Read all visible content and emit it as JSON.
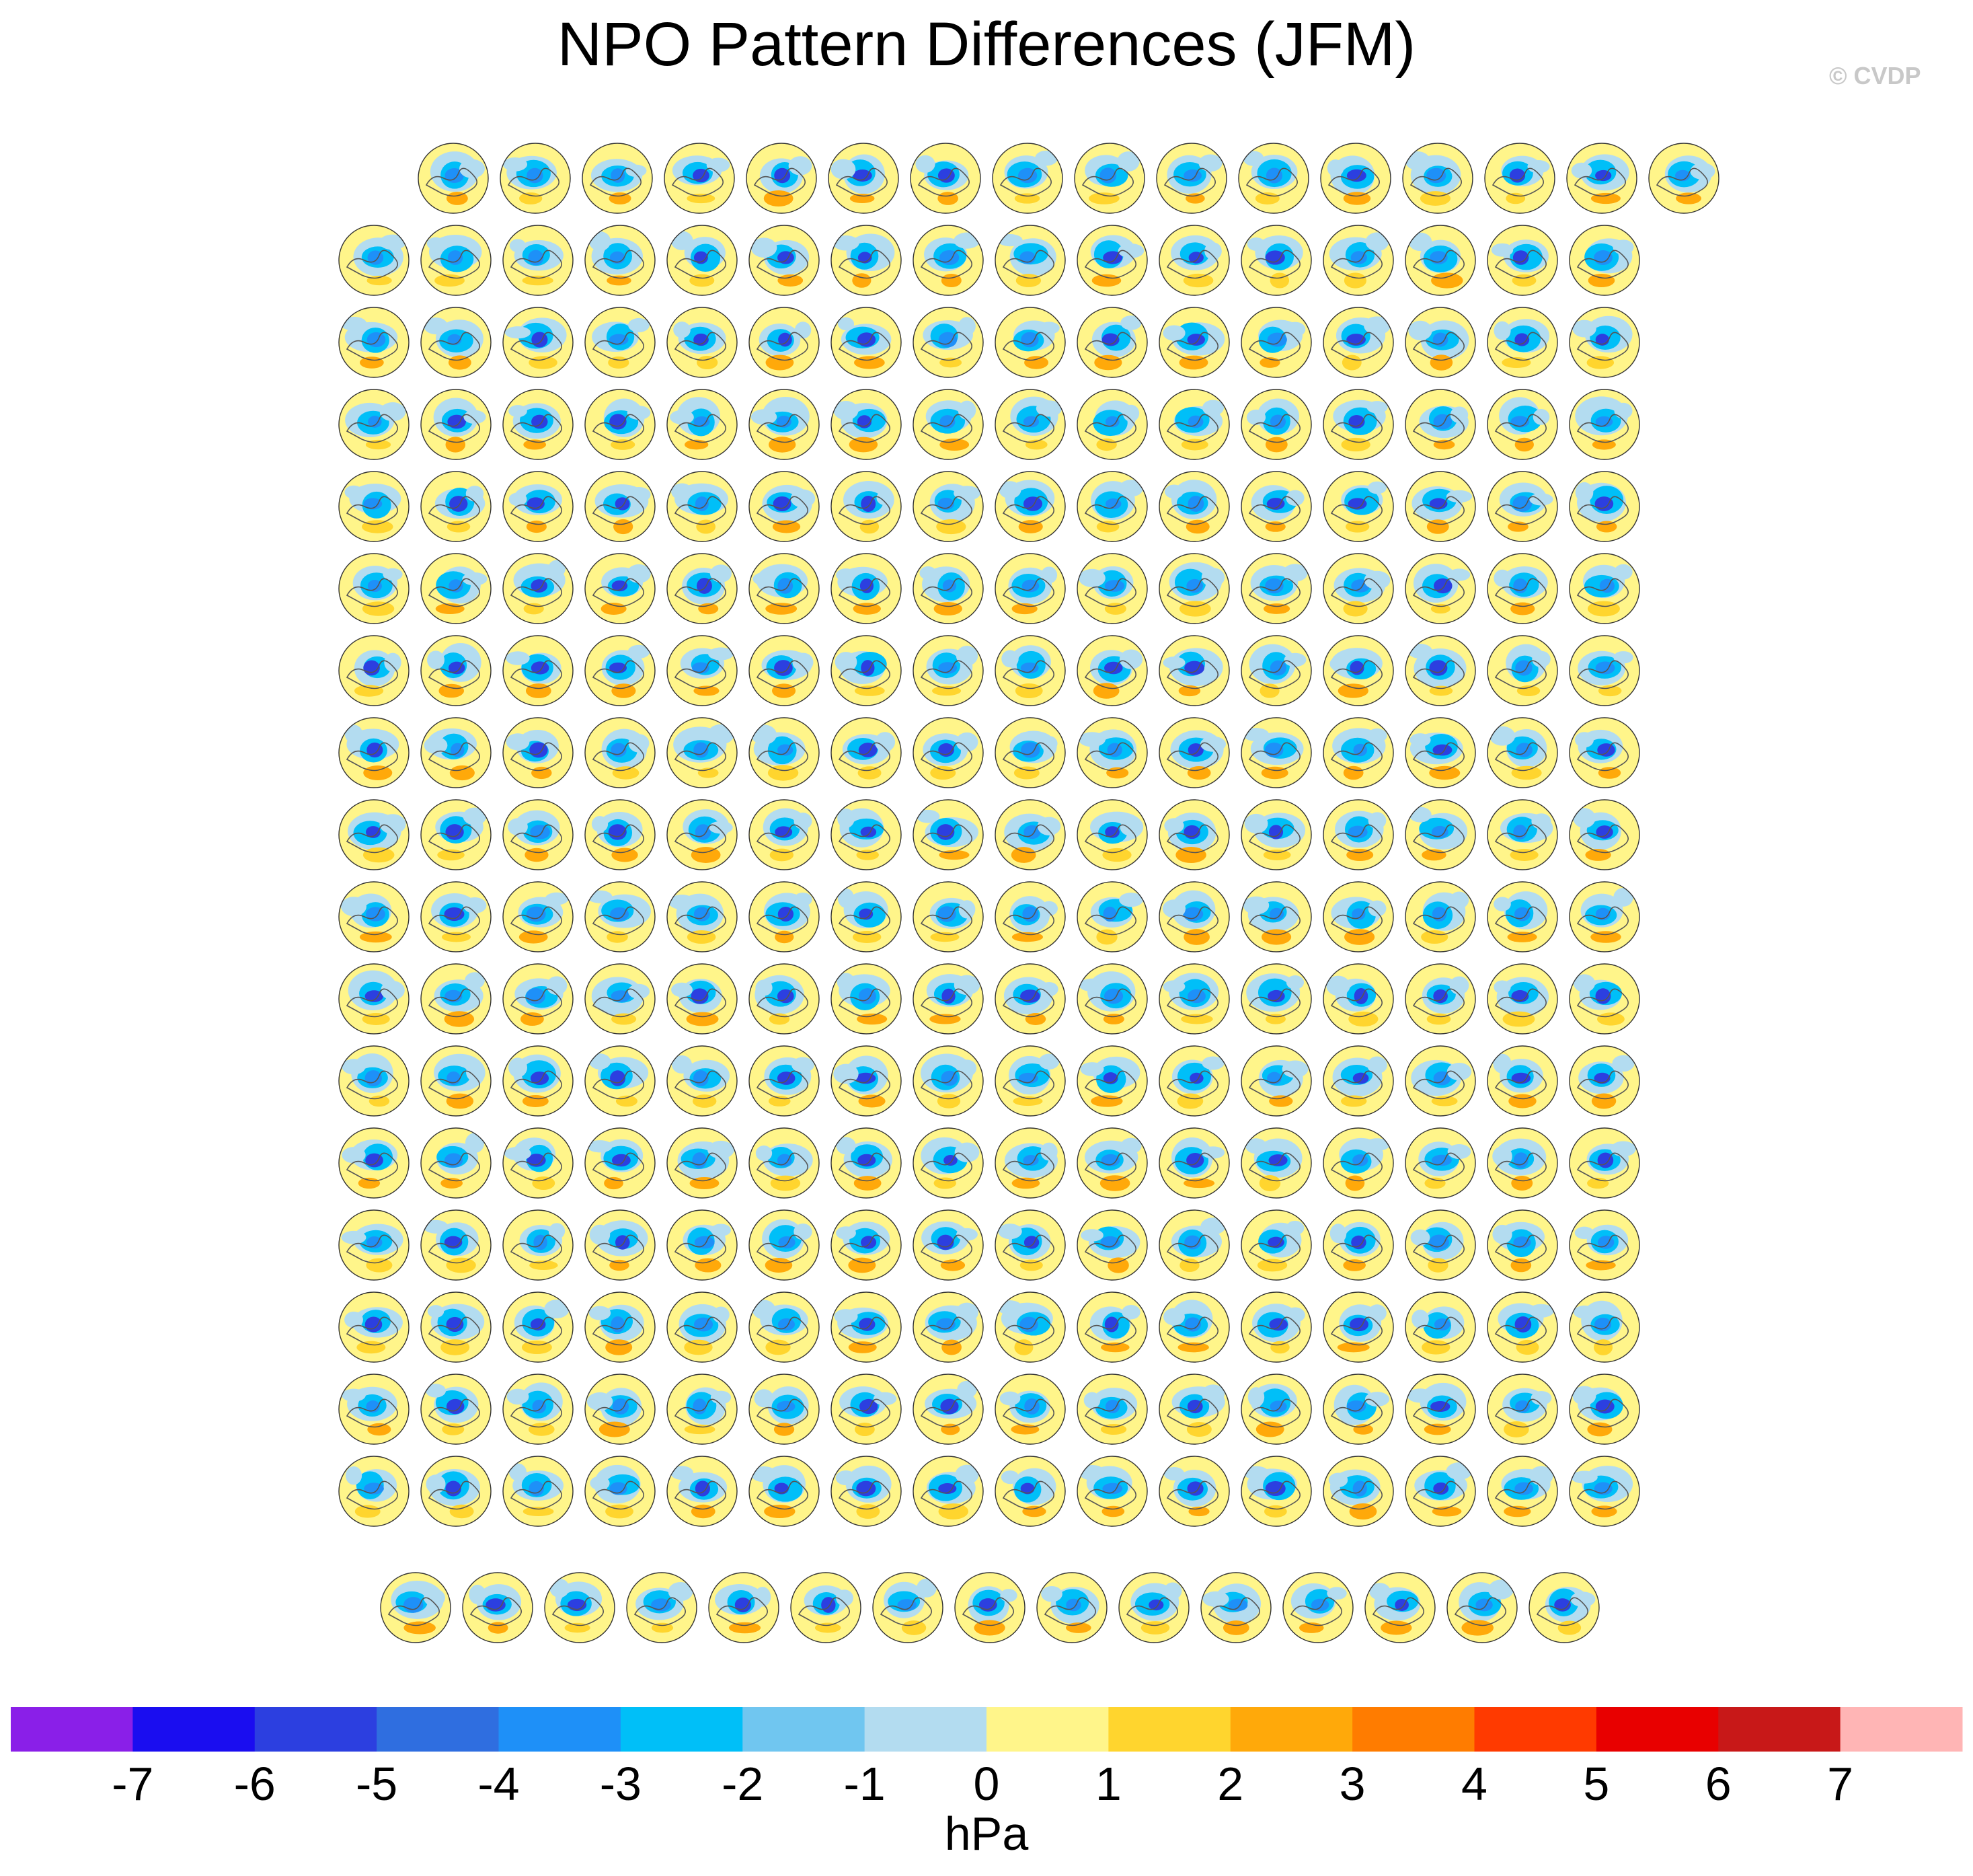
{
  "title": "NPO Pattern Differences (JFM)",
  "watermark": "© CVDP",
  "chart_data": {
    "type": "heatmap",
    "description_of_panels": "polar-stereographic maps",
    "panel_rows": [
      16,
      16,
      16,
      16,
      16,
      16,
      16,
      16,
      16,
      16,
      16,
      16,
      16,
      16,
      16,
      16,
      16,
      15
    ],
    "colorbar": {
      "unit": "hPa",
      "ticks": [
        "-7",
        "-6",
        "-5",
        "-4",
        "-3",
        "-2",
        "-1",
        "0",
        "1",
        "2",
        "3",
        "4",
        "5",
        "6",
        "7"
      ],
      "colors": [
        "#8a1fe8",
        "#1a0df0",
        "#2c3fe0",
        "#2f6ee0",
        "#1e90f8",
        "#00bff8",
        "#70c6f0",
        "#b3dcf0",
        "#fff58a",
        "#ffd52e",
        "#ffa90a",
        "#ff7c00",
        "#ff3a00",
        "#e80000",
        "#c81818",
        "#ffb5b5"
      ]
    }
  }
}
